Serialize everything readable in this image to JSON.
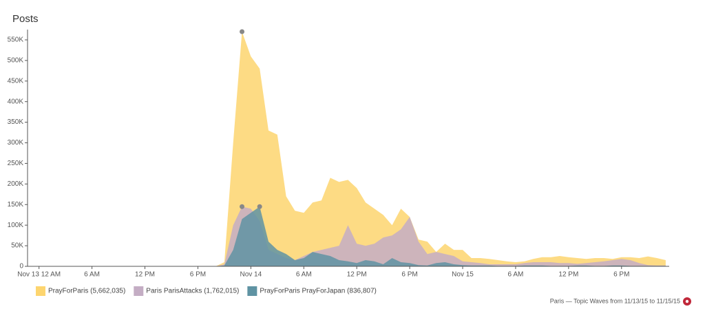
{
  "chart_data": {
    "type": "area",
    "title": "Posts",
    "footer": "Paris — Topic Waves from 11/13/15 to 11/15/15",
    "x": [
      0,
      20,
      21,
      22,
      23,
      24,
      25,
      26,
      27,
      28,
      29,
      30,
      31,
      32,
      33,
      34,
      35,
      36,
      37,
      38,
      39,
      40,
      41,
      42,
      43,
      44,
      45,
      46,
      47,
      48,
      49,
      50,
      51,
      52,
      53,
      54,
      55,
      56,
      57,
      58,
      59,
      60,
      61,
      62,
      63,
      64,
      65,
      66,
      67,
      68,
      69,
      70,
      71
    ],
    "xlim": [
      -1.3,
      71.4
    ],
    "xticks": [
      {
        "value": 0,
        "label": "Nov 13 12 AM"
      },
      {
        "value": 6,
        "label": "6 AM"
      },
      {
        "value": 12,
        "label": "12 PM"
      },
      {
        "value": 18,
        "label": "6 PM"
      },
      {
        "value": 24,
        "label": "Nov 14"
      },
      {
        "value": 30,
        "label": "6 AM"
      },
      {
        "value": 36,
        "label": "12 PM"
      },
      {
        "value": 42,
        "label": "6 PM"
      },
      {
        "value": 48,
        "label": "Nov 15"
      },
      {
        "value": 54,
        "label": "6 AM"
      },
      {
        "value": 60,
        "label": "12 PM"
      },
      {
        "value": 66,
        "label": "6 PM"
      }
    ],
    "ylim": [
      0,
      575000
    ],
    "yticks": [
      0,
      {
        "value": 50000,
        "label": "50K"
      },
      {
        "value": 100000,
        "label": "100K"
      },
      {
        "value": 150000,
        "label": "150K"
      },
      {
        "value": 200000,
        "label": "200K"
      },
      {
        "value": 250000,
        "label": "250K"
      },
      {
        "value": 300000,
        "label": "300K"
      },
      {
        "value": 350000,
        "label": "350K"
      },
      {
        "value": 400000,
        "label": "400K"
      },
      {
        "value": 450000,
        "label": "450K"
      },
      {
        "value": 500000,
        "label": "500K"
      },
      {
        "value": 550000,
        "label": "550K"
      }
    ],
    "series": [
      {
        "name": "PrayForParis (5,662,035)",
        "color": "#fdd56f",
        "values": [
          0,
          0,
          10000,
          300000,
          570000,
          510000,
          480000,
          330000,
          320000,
          170000,
          135000,
          130000,
          155000,
          160000,
          215000,
          205000,
          210000,
          190000,
          155000,
          140000,
          125000,
          100000,
          140000,
          120000,
          65000,
          60000,
          35000,
          55000,
          40000,
          40000,
          20000,
          20000,
          18000,
          15000,
          12000,
          10000,
          12000,
          18000,
          22000,
          22000,
          25000,
          22000,
          20000,
          18000,
          20000,
          20000,
          18000,
          22000,
          22000,
          20000,
          24000,
          20000,
          15000
        ]
      },
      {
        "name": "Paris ParisAttacks (1,762,015)",
        "color": "#c4adc4",
        "values": [
          0,
          0,
          5000,
          100000,
          145000,
          140000,
          110000,
          40000,
          30000,
          20000,
          15000,
          25000,
          35000,
          40000,
          45000,
          50000,
          100000,
          55000,
          50000,
          55000,
          70000,
          75000,
          90000,
          120000,
          60000,
          30000,
          35000,
          30000,
          25000,
          12000,
          10000,
          8000,
          5000,
          5000,
          5000,
          5000,
          8000,
          10000,
          10000,
          10000,
          8000,
          8000,
          6000,
          8000,
          10000,
          12000,
          15000,
          18000,
          15000,
          8000,
          3000,
          2000,
          2000
        ]
      },
      {
        "name": "PrayForParis PrayForJapan (836,807)",
        "color": "#5f93a3",
        "values": [
          0,
          0,
          2000,
          40000,
          115000,
          130000,
          145000,
          60000,
          40000,
          30000,
          15000,
          20000,
          35000,
          30000,
          25000,
          15000,
          12000,
          8000,
          15000,
          12000,
          5000,
          20000,
          10000,
          8000,
          3000,
          2000,
          8000,
          10000,
          5000,
          3000,
          2000,
          2000,
          2000,
          1000,
          1000,
          1000,
          2000,
          2000,
          2000,
          1000,
          1000,
          1000,
          2000,
          2000,
          1000,
          1000,
          2000,
          2000,
          1000,
          1000,
          1000,
          1000,
          1000
        ]
      }
    ]
  }
}
